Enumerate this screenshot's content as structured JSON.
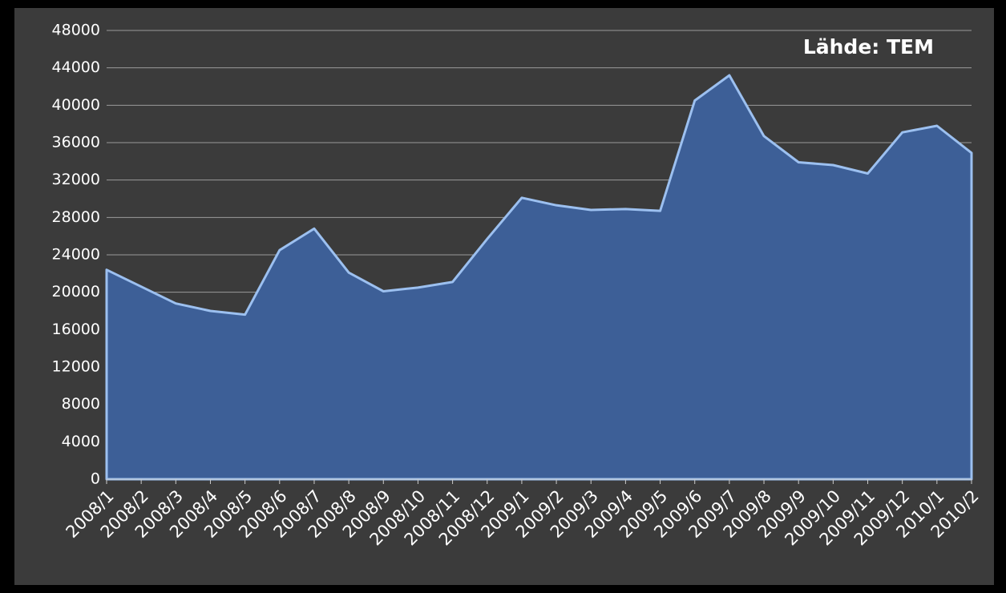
{
  "chart_data": {
    "type": "area",
    "annotation": "Lähde: TEM",
    "categories": [
      "2008/1",
      "2008/2",
      "2008/3",
      "2008/4",
      "2008/5",
      "2008/6",
      "2008/7",
      "2008/8",
      "2008/9",
      "2008/10",
      "2008/11",
      "2008/12",
      "2009/1",
      "2009/2",
      "2009/3",
      "2009/4",
      "2009/5",
      "2009/6",
      "2009/7",
      "2009/8",
      "2009/9",
      "2009/10",
      "2009/11",
      "2009/12",
      "2010/1",
      "2010/2"
    ],
    "values": [
      22400,
      20600,
      18800,
      18000,
      17600,
      24500,
      26800,
      22100,
      20100,
      20500,
      21100,
      25700,
      30100,
      29300,
      28800,
      28900,
      28700,
      40500,
      43200,
      36700,
      33900,
      33600,
      32700,
      37100,
      37800,
      34900
    ],
    "color": "#3d5f97",
    "ylim": [
      0,
      48000
    ],
    "yticks": [
      0,
      4000,
      8000,
      12000,
      16000,
      20000,
      24000,
      28000,
      32000,
      36000,
      40000,
      44000,
      48000
    ],
    "grid": true
  }
}
